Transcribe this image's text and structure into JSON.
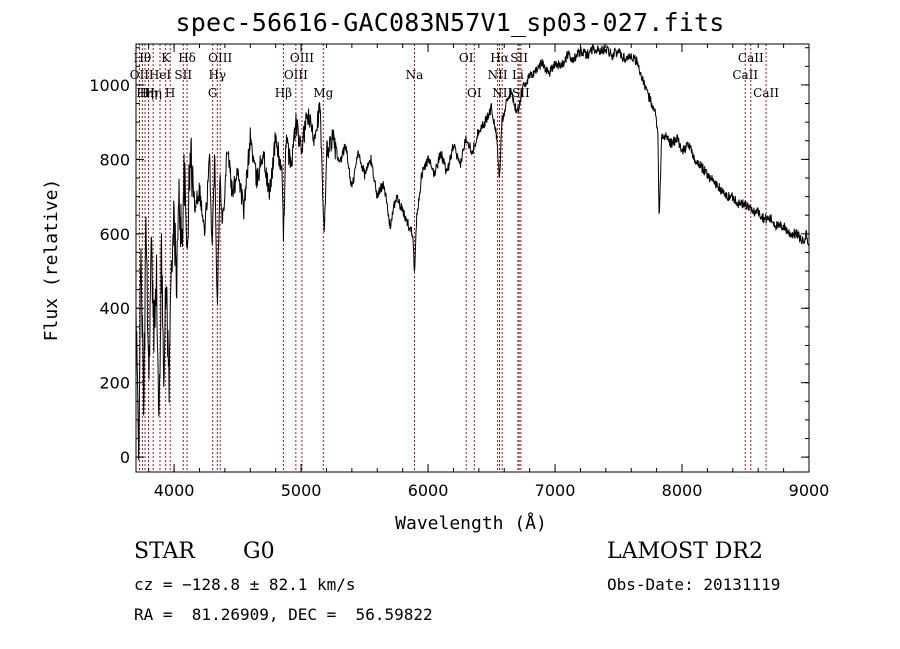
{
  "chart_data": {
    "type": "line",
    "title": "spec-56616-GAC083N57V1_sp03-027.fits",
    "xlabel": "Wavelength (Å)",
    "ylabel": "Flux (relative)",
    "xlim": [
      3700,
      9000
    ],
    "ylim": [
      -40,
      1110
    ],
    "xticks": [
      {
        "value": 4000,
        "label": "4000"
      },
      {
        "value": 5000,
        "label": "5000"
      },
      {
        "value": 6000,
        "label": "6000"
      },
      {
        "value": 7000,
        "label": "7000"
      },
      {
        "value": 8000,
        "label": "8000"
      },
      {
        "value": 9000,
        "label": "9000"
      }
    ],
    "yticks": [
      {
        "value": 0,
        "label": "0"
      },
      {
        "value": 200,
        "label": "200"
      },
      {
        "value": 400,
        "label": "400"
      },
      {
        "value": 600,
        "label": "600"
      },
      {
        "value": 800,
        "label": "800"
      },
      {
        "value": 1000,
        "label": "1000"
      }
    ],
    "grid": false,
    "colors": {
      "line": "#000000",
      "marker": "#8b0000"
    },
    "series": [
      {
        "x": [
          3700,
          3720,
          3740,
          3760,
          3780,
          3800,
          3820,
          3840,
          3860,
          3880,
          3900,
          3920,
          3940,
          3960,
          3980,
          4000,
          4020,
          4040,
          4060,
          4080,
          4100,
          4130,
          4160,
          4200,
          4240,
          4280,
          4300,
          4320,
          4340,
          4360,
          4380,
          4420,
          4460,
          4500,
          4550,
          4600,
          4650,
          4700,
          4750,
          4800,
          4850,
          4861,
          4880,
          4920,
          4960,
          5000,
          5050,
          5100,
          5150,
          5170,
          5183,
          5200,
          5250,
          5300,
          5350,
          5400,
          5450,
          5500,
          5550,
          5600,
          5650,
          5700,
          5750,
          5800,
          5850,
          5880,
          5893,
          5910,
          5950,
          6000,
          6050,
          6100,
          6150,
          6200,
          6250,
          6300,
          6350,
          6400,
          6450,
          6500,
          6540,
          6563,
          6580,
          6620,
          6660,
          6700,
          6750,
          6800,
          6850,
          6900,
          6950,
          7000,
          7050,
          7100,
          7150,
          7200,
          7250,
          7300,
          7350,
          7400,
          7450,
          7500,
          7550,
          7600,
          7650,
          7700,
          7750,
          7780,
          7800,
          7810,
          7820,
          7840,
          7880,
          7920,
          7960,
          8000,
          8050,
          8100,
          8150,
          8200,
          8250,
          8300,
          8350,
          8400,
          8450,
          8500,
          8550,
          8600,
          8650,
          8700,
          8750,
          8800,
          8850,
          8900,
          8950,
          8980,
          9000
        ],
        "y": [
          380,
          20,
          560,
          120,
          650,
          210,
          560,
          330,
          520,
          60,
          540,
          250,
          480,
          180,
          560,
          620,
          480,
          700,
          580,
          760,
          560,
          820,
          680,
          720,
          600,
          800,
          560,
          820,
          400,
          760,
          620,
          840,
          700,
          780,
          660,
          860,
          740,
          820,
          700,
          860,
          760,
          580,
          860,
          780,
          900,
          820,
          920,
          860,
          940,
          700,
          580,
          820,
          860,
          780,
          840,
          720,
          820,
          760,
          800,
          700,
          740,
          620,
          700,
          660,
          620,
          600,
          500,
          640,
          760,
          800,
          760,
          820,
          760,
          840,
          780,
          860,
          820,
          880,
          900,
          940,
          860,
          740,
          900,
          960,
          980,
          920,
          1000,
          1020,
          1040,
          1060,
          1030,
          1060,
          1050,
          1080,
          1070,
          1090,
          1080,
          1100,
          1090,
          1100,
          1080,
          1090,
          1070,
          1080,
          1060,
          1000,
          960,
          940,
          900,
          870,
          640,
          860,
          860,
          840,
          860,
          820,
          840,
          800,
          780,
          760,
          740,
          720,
          700,
          700,
          680,
          680,
          660,
          660,
          640,
          640,
          620,
          620,
          600,
          600,
          580,
          600,
          560
        ]
      }
    ],
    "line_markers": [
      {
        "wavelength": 3727,
        "label": "OII",
        "row": 2
      },
      {
        "wavelength": 3750,
        "label": "Hθ",
        "row": 1
      },
      {
        "wavelength": 3771,
        "label": "Hη",
        "row": 3
      },
      {
        "wavelength": 3798,
        "label": "Hη",
        "row": 3
      },
      {
        "wavelength": 3835,
        "label": "Hη",
        "row": 3
      },
      {
        "wavelength": 3889,
        "label": "HeI",
        "row": 2
      },
      {
        "wavelength": 3934,
        "label": "K",
        "row": 1
      },
      {
        "wavelength": 3969,
        "label": "H",
        "row": 3
      },
      {
        "wavelength": 4072,
        "label": "SII",
        "row": 2
      },
      {
        "wavelength": 4102,
        "label": "Hδ",
        "row": 1
      },
      {
        "wavelength": 4304,
        "label": "G",
        "row": 3
      },
      {
        "wavelength": 4340,
        "label": "Hγ",
        "row": 2
      },
      {
        "wavelength": 4363,
        "label": "OIII",
        "row": 1
      },
      {
        "wavelength": 4861,
        "label": "Hβ",
        "row": 3
      },
      {
        "wavelength": 4959,
        "label": "OIII",
        "row": 2
      },
      {
        "wavelength": 5007,
        "label": "OIII",
        "row": 1
      },
      {
        "wavelength": 5175,
        "label": "Mg",
        "row": 3
      },
      {
        "wavelength": 5893,
        "label": "Na",
        "row": 2
      },
      {
        "wavelength": 6300,
        "label": "OI",
        "row": 1
      },
      {
        "wavelength": 6364,
        "label": "OI",
        "row": 3
      },
      {
        "wavelength": 6548,
        "label": "NII",
        "row": 2
      },
      {
        "wavelength": 6563,
        "label": "Hα",
        "row": 1
      },
      {
        "wavelength": 6584,
        "label": "NII",
        "row": 3
      },
      {
        "wavelength": 6708,
        "label": "Li",
        "row": 2
      },
      {
        "wavelength": 6717,
        "label": "SII",
        "row": 1
      },
      {
        "wavelength": 6731,
        "label": "SII",
        "row": 3
      },
      {
        "wavelength": 8498,
        "label": "CaII",
        "row": 2
      },
      {
        "wavelength": 8542,
        "label": "CaII",
        "row": 1
      },
      {
        "wavelength": 8662,
        "label": "CaII",
        "row": 3
      }
    ]
  },
  "info": {
    "object_class": "STAR",
    "subclass": "G0",
    "survey": "LAMOST DR2",
    "cz": "cz = −128.8 ± 82.1 km/s",
    "obs_date": "Obs-Date: 20131119",
    "coords": "RA =  81.26909, DEC =  56.59822"
  }
}
